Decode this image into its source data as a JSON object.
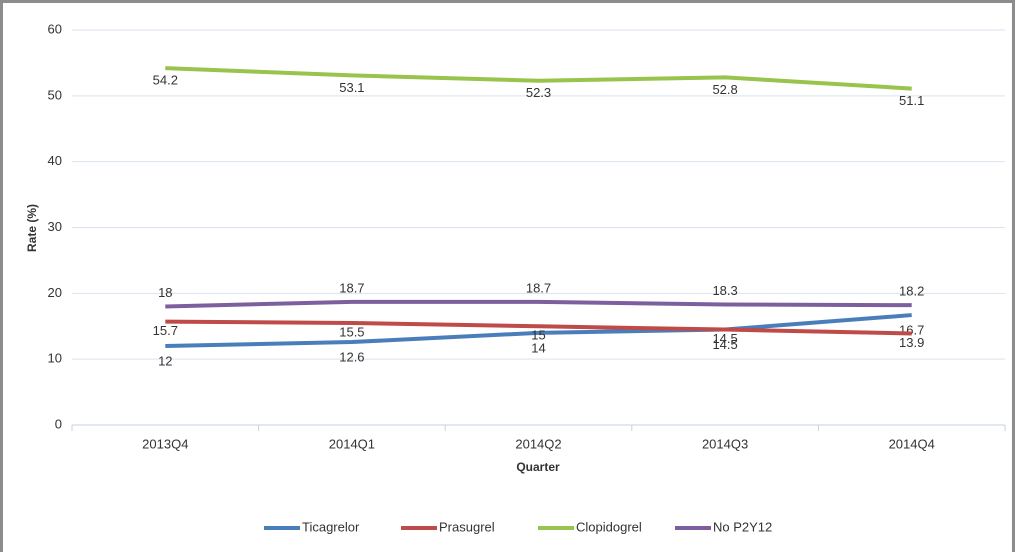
{
  "chart_data": {
    "type": "line",
    "x_label": "Quarter",
    "y_label": "Rate (%)",
    "categories": [
      "2013Q4",
      "2014Q1",
      "2014Q2",
      "2014Q3",
      "2014Q4"
    ],
    "series": [
      {
        "name": "Ticagrelor",
        "color": "#4a7ebb",
        "values": [
          12,
          12.6,
          14,
          14.5,
          16.7
        ]
      },
      {
        "name": "Prasugrel",
        "color": "#be4b48",
        "values": [
          15.7,
          15.5,
          15,
          14.5,
          13.9
        ]
      },
      {
        "name": "Clopidogrel",
        "color": "#98c34c",
        "values": [
          54.2,
          53.1,
          52.3,
          52.8,
          51.1
        ]
      },
      {
        "name": "No P2Y12",
        "color": "#7d5fa0",
        "values": [
          18,
          18.7,
          18.7,
          18.3,
          18.2
        ]
      }
    ],
    "ylim": [
      0,
      60
    ],
    "yticks": [
      0,
      10,
      20,
      30,
      40,
      50,
      60
    ],
    "grid": true,
    "legend": "bottom"
  }
}
